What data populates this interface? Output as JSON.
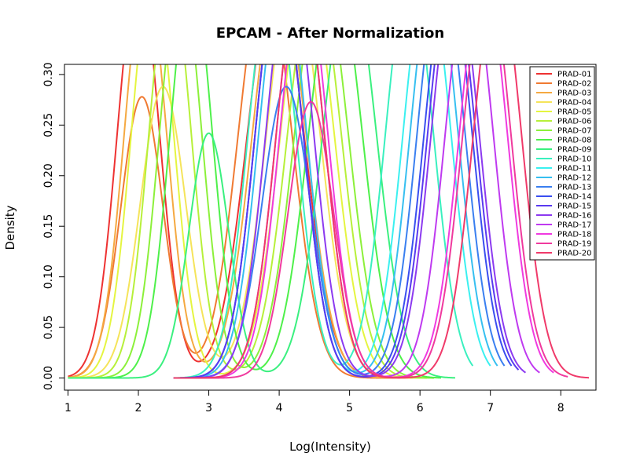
{
  "chart_data": {
    "type": "line",
    "title": "EPCAM - After Normalization",
    "xlabel": "Log(Intensity)",
    "ylabel": "Density",
    "xlim": [
      0.95,
      8.5
    ],
    "ylim": [
      -0.012,
      0.31
    ],
    "xticks": [
      1,
      2,
      3,
      4,
      5,
      6,
      7,
      8
    ],
    "yticks": [
      0.0,
      0.05,
      0.1,
      0.15,
      0.2,
      0.25,
      0.3
    ],
    "ytick_labels": [
      "0.00",
      "0.05",
      "0.10",
      "0.15",
      "0.20",
      "0.25",
      "0.30"
    ],
    "grid": false,
    "legend_position": "top-right",
    "series": [
      {
        "name": "PRAD-01",
        "color": "#ee3232",
        "x_range": [
          1.0,
          5.6
        ],
        "peaks": [
          {
            "mu": 2.0,
            "sd": 0.3,
            "h": 0.4
          },
          {
            "mu": 3.95,
            "sd": 0.4,
            "h": 0.4
          }
        ]
      },
      {
        "name": "PRAD-02",
        "color": "#f07a32",
        "x_range": [
          1.0,
          5.6
        ],
        "peaks": [
          {
            "mu": 2.05,
            "sd": 0.3,
            "h": 0.278
          },
          {
            "mu": 3.8,
            "sd": 0.38,
            "h": 0.4
          }
        ]
      },
      {
        "name": "PRAD-03",
        "color": "#f5a941",
        "x_range": [
          1.0,
          5.8
        ],
        "peaks": [
          {
            "mu": 2.1,
            "sd": 0.3,
            "h": 0.4
          },
          {
            "mu": 4.0,
            "sd": 0.38,
            "h": 0.4
          }
        ]
      },
      {
        "name": "PRAD-04",
        "color": "#f5e45a",
        "x_range": [
          1.0,
          5.9
        ],
        "peaks": [
          {
            "mu": 2.35,
            "sd": 0.32,
            "h": 0.288
          },
          {
            "mu": 4.2,
            "sd": 0.38,
            "h": 0.4
          }
        ]
      },
      {
        "name": "PRAD-05",
        "color": "#e5f540",
        "x_range": [
          1.0,
          6.0
        ],
        "peaks": [
          {
            "mu": 2.2,
            "sd": 0.3,
            "h": 0.4
          },
          {
            "mu": 4.4,
            "sd": 0.38,
            "h": 0.4
          }
        ]
      },
      {
        "name": "PRAD-06",
        "color": "#b7f03a",
        "x_range": [
          1.0,
          6.1
        ],
        "peaks": [
          {
            "mu": 2.45,
            "sd": 0.3,
            "h": 0.4
          },
          {
            "mu": 4.5,
            "sd": 0.38,
            "h": 0.4
          }
        ]
      },
      {
        "name": "PRAD-07",
        "color": "#8cf03a",
        "x_range": [
          1.0,
          6.2
        ],
        "peaks": [
          {
            "mu": 2.6,
            "sd": 0.3,
            "h": 0.4
          },
          {
            "mu": 4.6,
            "sd": 0.38,
            "h": 0.4
          }
        ]
      },
      {
        "name": "PRAD-08",
        "color": "#4ef04a",
        "x_range": [
          1.0,
          6.3
        ],
        "peaks": [
          {
            "mu": 2.75,
            "sd": 0.3,
            "h": 0.4
          },
          {
            "mu": 4.8,
            "sd": 0.38,
            "h": 0.4
          }
        ]
      },
      {
        "name": "PRAD-09",
        "color": "#3af07f",
        "x_range": [
          1.0,
          6.5
        ],
        "peaks": [
          {
            "mu": 3.0,
            "sd": 0.28,
            "h": 0.242
          },
          {
            "mu": 5.0,
            "sd": 0.38,
            "h": 0.4
          }
        ]
      },
      {
        "name": "PRAD-10",
        "color": "#3af0bf",
        "x_range": [
          2.5,
          6.75
        ],
        "peaks": [
          {
            "mu": 3.9,
            "sd": 0.34,
            "h": 0.4
          },
          {
            "mu": 5.85,
            "sd": 0.34,
            "h": 0.4
          }
        ]
      },
      {
        "name": "PRAD-11",
        "color": "#3af0f0",
        "x_range": [
          2.5,
          7.0
        ],
        "peaks": [
          {
            "mu": 4.0,
            "sd": 0.34,
            "h": 0.4
          },
          {
            "mu": 6.1,
            "sd": 0.34,
            "h": 0.4
          }
        ]
      },
      {
        "name": "PRAD-12",
        "color": "#36bff0",
        "x_range": [
          2.5,
          7.1
        ],
        "peaks": [
          {
            "mu": 4.05,
            "sd": 0.34,
            "h": 0.4
          },
          {
            "mu": 6.2,
            "sd": 0.34,
            "h": 0.4
          }
        ]
      },
      {
        "name": "PRAD-13",
        "color": "#3a7ff0",
        "x_range": [
          2.5,
          7.2
        ],
        "peaks": [
          {
            "mu": 4.1,
            "sd": 0.34,
            "h": 0.288
          },
          {
            "mu": 6.3,
            "sd": 0.34,
            "h": 0.4
          }
        ]
      },
      {
        "name": "PRAD-14",
        "color": "#3a4ef0",
        "x_range": [
          2.5,
          7.3
        ],
        "peaks": [
          {
            "mu": 4.0,
            "sd": 0.34,
            "h": 0.4
          },
          {
            "mu": 6.4,
            "sd": 0.34,
            "h": 0.4
          }
        ]
      },
      {
        "name": "PRAD-15",
        "color": "#5a3af0",
        "x_range": [
          2.5,
          7.4
        ],
        "peaks": [
          {
            "mu": 4.0,
            "sd": 0.34,
            "h": 0.4
          },
          {
            "mu": 6.45,
            "sd": 0.34,
            "h": 0.4
          }
        ]
      },
      {
        "name": "PRAD-16",
        "color": "#8c3af0",
        "x_range": [
          2.5,
          7.5
        ],
        "peaks": [
          {
            "mu": 4.15,
            "sd": 0.34,
            "h": 0.4
          },
          {
            "mu": 6.5,
            "sd": 0.34,
            "h": 0.4
          }
        ]
      },
      {
        "name": "PRAD-17",
        "color": "#bf3af0",
        "x_range": [
          2.5,
          7.7
        ],
        "peaks": [
          {
            "mu": 4.3,
            "sd": 0.34,
            "h": 0.4
          },
          {
            "mu": 6.7,
            "sd": 0.34,
            "h": 0.4
          }
        ]
      },
      {
        "name": "PRAD-18",
        "color": "#f03ae0",
        "x_range": [
          2.5,
          7.9
        ],
        "peaks": [
          {
            "mu": 4.35,
            "sd": 0.34,
            "h": 0.4
          },
          {
            "mu": 6.9,
            "sd": 0.34,
            "h": 0.4
          }
        ]
      },
      {
        "name": "PRAD-19",
        "color": "#f03a9e",
        "x_range": [
          2.5,
          8.1
        ],
        "peaks": [
          {
            "mu": 4.45,
            "sd": 0.32,
            "h": 0.273
          },
          {
            "mu": 6.95,
            "sd": 0.34,
            "h": 0.4
          }
        ]
      },
      {
        "name": "PRAD-20",
        "color": "#f03a6a",
        "x_range": [
          2.5,
          8.4
        ],
        "peaks": [
          {
            "mu": 4.3,
            "sd": 0.34,
            "h": 0.4
          },
          {
            "mu": 7.1,
            "sd": 0.34,
            "h": 0.4
          }
        ]
      }
    ]
  }
}
